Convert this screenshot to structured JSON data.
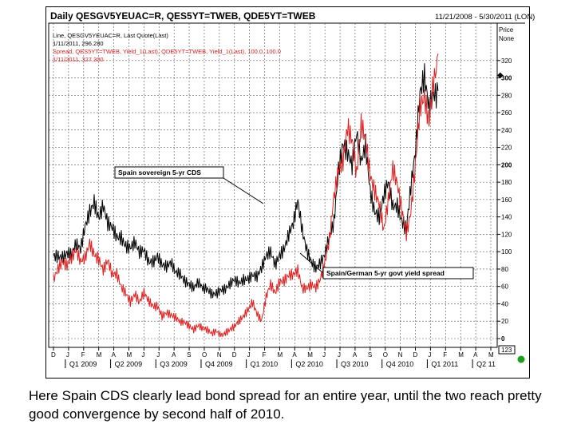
{
  "chart_data": {
    "type": "line",
    "title": "Daily QESGV5YEUAC=R, QES5YT=TWEB, QDE5YT=TWEB",
    "date_range": "11/21/2008 - 5/30/2011 (LON)",
    "legend": [
      {
        "text": "Line, QESGV5YEUAC=R, Last Quote(Last)",
        "color": "#000000"
      },
      {
        "text": "1/11/2011, 296.280",
        "color": "#000000"
      },
      {
        "text": "Spread, QES5YT=TWEB, Yield_1(Last), QDE5YT=TWEB, Yield_1(Last), 100.0, 100.0",
        "color": "#e02020"
      },
      {
        "text": "1/11/2011, 327.300",
        "color": "#e02020"
      }
    ],
    "price_label": "Price",
    "none_label": "None",
    "ylim": [
      0,
      340
    ],
    "y_ticks": [
      "0",
      "20",
      "40",
      "60",
      "80",
      "100",
      "120",
      "140",
      "160",
      "180",
      "200",
      "220",
      "240",
      "260",
      "280",
      "300",
      "320"
    ],
    "month_labels": [
      "D",
      "J",
      "F",
      "M",
      "A",
      "M",
      "J",
      "J",
      "A",
      "S",
      "O",
      "N",
      "D",
      "J",
      "F",
      "M",
      "A",
      "M",
      "J",
      "J",
      "A",
      "S",
      "O",
      "N",
      "D",
      "J",
      "F",
      "M",
      "A",
      "M"
    ],
    "quarter_labels": [
      "Q1 2009",
      "Q2 2009",
      "Q3 2009",
      "Q4 2009",
      "Q1 2010",
      "Q2 2010",
      "Q3 2010",
      "Q4 2010",
      "Q1 2011",
      "Q2 11"
    ],
    "scale_box": "123",
    "series": [
      {
        "name": "Spain sovereign 5-yr CDS",
        "color": "#000000",
        "x": [
          0,
          0.3,
          0.6,
          0.9,
          1.2,
          1.5,
          1.8,
          2.1,
          2.4,
          2.7,
          3.0,
          3.3,
          3.6,
          3.9,
          4.2,
          4.5,
          4.8,
          5.1,
          5.4,
          5.7,
          6.0,
          6.3,
          6.6,
          6.9,
          7.2,
          7.5,
          7.8,
          8.1,
          8.4,
          8.7,
          9.0,
          9.3,
          9.6,
          9.9,
          10.2,
          10.5,
          10.8,
          11.1,
          11.4,
          11.7,
          12.0,
          12.3,
          12.6,
          12.9,
          13.2,
          13.5,
          13.8,
          14.1,
          14.4,
          14.7,
          15.0,
          15.3,
          15.6,
          15.9,
          16.2,
          16.5,
          16.8,
          17.1,
          17.4,
          17.7,
          18.0,
          18.3,
          18.6,
          18.9,
          19.2,
          19.5,
          19.8,
          20.1,
          20.4,
          20.7,
          21.0,
          21.3,
          21.6,
          21.9,
          22.2,
          22.5,
          22.8,
          23.1,
          23.4,
          23.7,
          24.0,
          24.3,
          24.6,
          24.9,
          25.2,
          25.5
        ],
        "values": [
          95,
          98,
          97,
          100,
          95,
          105,
          100,
          130,
          150,
          162,
          140,
          150,
          128,
          125,
          118,
          120,
          110,
          105,
          108,
          95,
          100,
          90,
          92,
          98,
          85,
          80,
          84,
          75,
          76,
          70,
          65,
          58,
          62,
          55,
          56,
          53,
          55,
          58,
          56,
          60,
          65,
          63,
          70,
          72,
          75,
          70,
          78,
          92,
          100,
          88,
          100,
          105,
          118,
          128,
          155,
          125,
          105,
          92,
          82,
          85,
          93,
          115,
          135,
          200,
          230,
          215,
          195,
          230,
          200,
          225,
          175,
          150,
          140,
          160,
          175,
          150,
          155,
          140,
          130,
          175,
          210,
          275,
          300,
          270,
          290,
          285
        ]
      },
      {
        "name": "Spain/German 5-yr govt yield spread",
        "color": "#e02020",
        "x": [
          0,
          0.3,
          0.6,
          0.9,
          1.2,
          1.5,
          1.8,
          2.1,
          2.4,
          2.7,
          3.0,
          3.3,
          3.6,
          3.9,
          4.2,
          4.5,
          4.8,
          5.1,
          5.4,
          5.7,
          6.0,
          6.3,
          6.6,
          6.9,
          7.2,
          7.5,
          7.8,
          8.1,
          8.4,
          8.7,
          9.0,
          9.3,
          9.6,
          9.9,
          10.2,
          10.5,
          10.8,
          11.1,
          11.4,
          11.7,
          12.0,
          12.3,
          12.6,
          12.9,
          13.2,
          13.5,
          13.8,
          14.1,
          14.4,
          14.7,
          15.0,
          15.3,
          15.6,
          15.9,
          16.2,
          16.5,
          16.8,
          17.1,
          17.4,
          17.7,
          18.0,
          18.3,
          18.6,
          18.9,
          19.2,
          19.5,
          19.8,
          20.1,
          20.4,
          20.7,
          21.0,
          21.3,
          21.6,
          21.9,
          22.2,
          22.5,
          22.8,
          23.1,
          23.4,
          23.7,
          24.0,
          24.3,
          24.6,
          24.9,
          25.2,
          25.5
        ],
        "values": [
          65,
          80,
          92,
          88,
          95,
          100,
          85,
          90,
          110,
          100,
          95,
          80,
          88,
          70,
          72,
          60,
          55,
          45,
          52,
          40,
          50,
          42,
          38,
          40,
          28,
          30,
          25,
          22,
          18,
          20,
          17,
          12,
          15,
          10,
          8,
          5,
          10,
          5,
          8,
          10,
          12,
          18,
          25,
          35,
          45,
          30,
          20,
          45,
          60,
          52,
          68,
          70,
          75,
          72,
          75,
          55,
          58,
          65,
          62,
          70,
          85,
          110,
          160,
          195,
          210,
          250,
          230,
          185,
          240,
          225,
          190,
          175,
          160,
          125,
          155,
          190,
          175,
          150,
          125,
          150,
          200,
          260,
          270,
          245,
          300,
          328
        ]
      }
    ],
    "annotations": [
      {
        "text": "Spain sovereign 5-yr CDS"
      },
      {
        "text": "Spain/German 5-yr govt yield spread"
      }
    ]
  },
  "caption": "Here Spain CDS clearly lead bond spread  for an entire year, until the two reach pretty good convergence by second half of 2010."
}
